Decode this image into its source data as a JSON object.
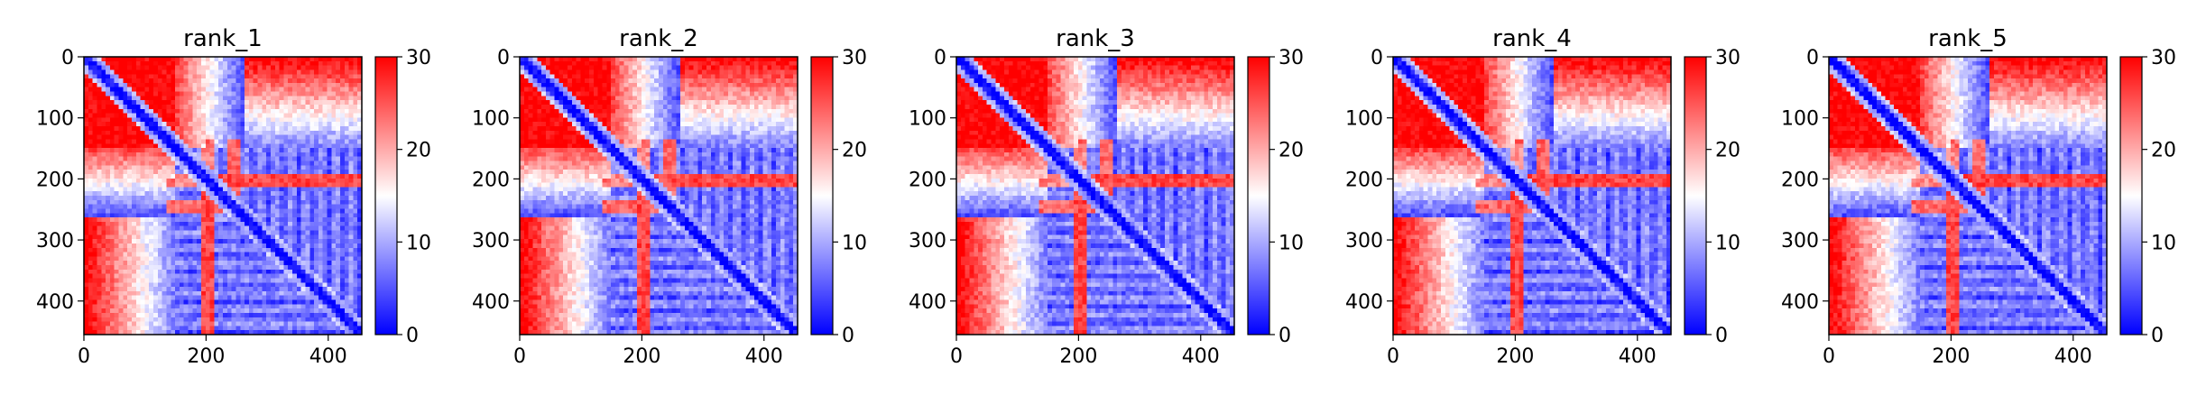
{
  "chart_data": [
    {
      "type": "heatmap",
      "title": "rank_1",
      "x_ticks": [
        "0",
        "200",
        "400"
      ],
      "y_ticks": [
        "0",
        "100",
        "200",
        "300",
        "400"
      ],
      "xlim": [
        0,
        455
      ],
      "ylim": [
        455,
        0
      ],
      "colorbar": {
        "range": [
          0,
          30
        ],
        "ticks": [
          "0",
          "10",
          "20",
          "30"
        ],
        "colors": [
          "#0000ff",
          "#ffffff",
          "#ff0000"
        ]
      }
    },
    {
      "type": "heatmap",
      "title": "rank_2",
      "x_ticks": [
        "0",
        "200",
        "400"
      ],
      "y_ticks": [
        "0",
        "100",
        "200",
        "300",
        "400"
      ],
      "xlim": [
        0,
        455
      ],
      "ylim": [
        455,
        0
      ],
      "colorbar": {
        "range": [
          0,
          30
        ],
        "ticks": [
          "0",
          "10",
          "20",
          "30"
        ],
        "colors": [
          "#0000ff",
          "#ffffff",
          "#ff0000"
        ]
      }
    },
    {
      "type": "heatmap",
      "title": "rank_3",
      "x_ticks": [
        "0",
        "200",
        "400"
      ],
      "y_ticks": [
        "0",
        "100",
        "200",
        "300",
        "400"
      ],
      "xlim": [
        0,
        455
      ],
      "ylim": [
        455,
        0
      ],
      "colorbar": {
        "range": [
          0,
          30
        ],
        "ticks": [
          "0",
          "10",
          "20",
          "30"
        ],
        "colors": [
          "#0000ff",
          "#ffffff",
          "#ff0000"
        ]
      }
    },
    {
      "type": "heatmap",
      "title": "rank_4",
      "x_ticks": [
        "0",
        "200",
        "400"
      ],
      "y_ticks": [
        "0",
        "100",
        "200",
        "300",
        "400"
      ],
      "xlim": [
        0,
        455
      ],
      "ylim": [
        455,
        0
      ],
      "colorbar": {
        "range": [
          0,
          30
        ],
        "ticks": [
          "0",
          "10",
          "20",
          "30"
        ],
        "colors": [
          "#0000ff",
          "#ffffff",
          "#ff0000"
        ]
      }
    },
    {
      "type": "heatmap",
      "title": "rank_5",
      "x_ticks": [
        "0",
        "200",
        "400"
      ],
      "y_ticks": [
        "0",
        "100",
        "200",
        "300",
        "400"
      ],
      "xlim": [
        0,
        455
      ],
      "ylim": [
        455,
        0
      ],
      "colorbar": {
        "range": [
          0,
          30
        ],
        "ticks": [
          "0",
          "10",
          "20",
          "30"
        ],
        "colors": [
          "#0000ff",
          "#ffffff",
          "#ff0000"
        ]
      }
    }
  ]
}
